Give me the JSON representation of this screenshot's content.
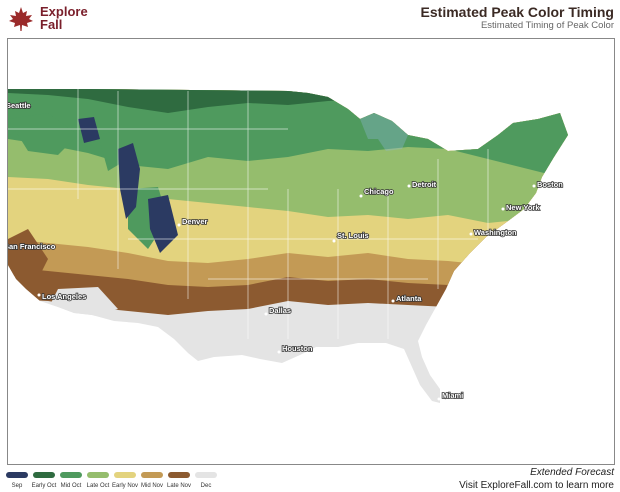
{
  "brand": {
    "line1": "Explore",
    "line2": "Fall"
  },
  "title": "Estimated Peak Color Timing",
  "subtitle": "Estimated Timing of Peak Color",
  "cities": [
    "Seattle",
    "San Francisco",
    "Los Angeles",
    "Denver",
    "Dallas",
    "Houston",
    "St. Louis",
    "Chicago",
    "Detroit",
    "Boston",
    "New York",
    "Washington",
    "Atlanta",
    "Miami"
  ],
  "legend": [
    {
      "label": "Sep",
      "color": "#2b3a62"
    },
    {
      "label": "Early Oct",
      "color": "#2f6b40"
    },
    {
      "label": "Mid Oct",
      "color": "#4f9a5e"
    },
    {
      "label": "Late Oct",
      "color": "#95bd6d"
    },
    {
      "label": "Early Nov",
      "color": "#e3d37e"
    },
    {
      "label": "Mid Nov",
      "color": "#c39a55"
    },
    {
      "label": "Late Nov",
      "color": "#8c5a30"
    },
    {
      "label": "Dec",
      "color": "#e4e4e4"
    }
  ],
  "footer": {
    "extended": "Extended Forecast",
    "visit": "Visit ExploreFall.com to learn more"
  }
}
